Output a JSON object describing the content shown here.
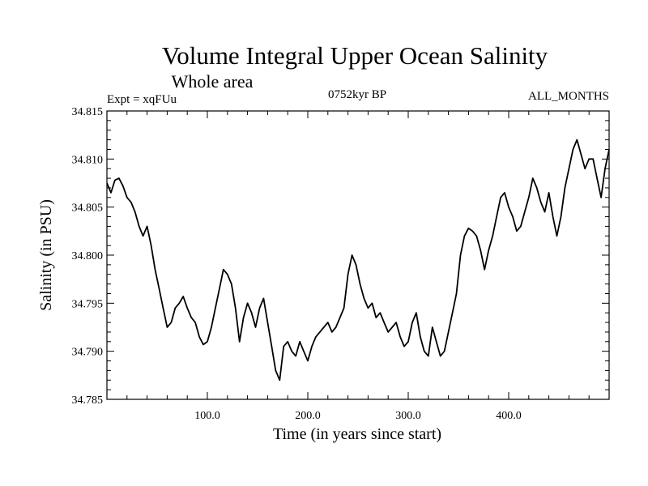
{
  "chart_data": {
    "type": "line",
    "title": "Volume Integral Upper Ocean Salinity",
    "subtitle": "Whole area",
    "experiment_label": "Expt = xqFUu",
    "period_label": "0752kyr BP",
    "months_label": "ALL_MONTHS",
    "xlabel": "Time (in years since start)",
    "ylabel": "Salinity (in PSU)",
    "xlim": [
      0,
      500
    ],
    "ylim": [
      34.785,
      34.815
    ],
    "x_ticks": [
      {
        "value": 100,
        "label": "100.0"
      },
      {
        "value": 200,
        "label": "200.0"
      },
      {
        "value": 300,
        "label": "300.0"
      },
      {
        "value": 400,
        "label": "400.0"
      }
    ],
    "y_ticks": [
      {
        "value": 34.785,
        "label": "34.785"
      },
      {
        "value": 34.79,
        "label": "34.790"
      },
      {
        "value": 34.795,
        "label": "34.795"
      },
      {
        "value": 34.8,
        "label": "34.800"
      },
      {
        "value": 34.805,
        "label": "34.805"
      },
      {
        "value": 34.81,
        "label": "34.810"
      },
      {
        "value": 34.815,
        "label": "34.815"
      }
    ],
    "series": [
      {
        "name": "salinity",
        "x": [
          0,
          4,
          8,
          12,
          16,
          20,
          24,
          28,
          32,
          36,
          40,
          44,
          48,
          52,
          56,
          60,
          64,
          68,
          72,
          76,
          80,
          84,
          88,
          92,
          96,
          100,
          104,
          108,
          112,
          116,
          120,
          124,
          128,
          132,
          136,
          140,
          144,
          148,
          152,
          156,
          160,
          164,
          168,
          172,
          176,
          180,
          184,
          188,
          192,
          196,
          200,
          204,
          208,
          212,
          216,
          220,
          224,
          228,
          232,
          236,
          240,
          244,
          248,
          252,
          256,
          260,
          264,
          268,
          272,
          276,
          280,
          284,
          288,
          292,
          296,
          300,
          304,
          308,
          312,
          316,
          320,
          324,
          328,
          332,
          336,
          340,
          344,
          348,
          352,
          356,
          360,
          364,
          368,
          372,
          376,
          380,
          384,
          388,
          392,
          396,
          400,
          404,
          408,
          412,
          416,
          420,
          424,
          428,
          432,
          436,
          440,
          444,
          448,
          452,
          456,
          460,
          464,
          468,
          472,
          476,
          480,
          484,
          488,
          492,
          496,
          500
        ],
        "values": [
          34.8075,
          34.8065,
          34.8078,
          34.808,
          34.8072,
          34.806,
          34.8055,
          34.8045,
          34.803,
          34.802,
          34.803,
          34.801,
          34.7985,
          34.7965,
          34.7945,
          34.7925,
          34.793,
          34.7945,
          34.795,
          34.7957,
          34.7945,
          34.7935,
          34.793,
          34.7915,
          34.7907,
          34.791,
          34.7925,
          34.7945,
          34.7965,
          34.7985,
          34.798,
          34.797,
          34.7945,
          34.791,
          34.7935,
          34.795,
          34.794,
          34.7925,
          34.7945,
          34.7955,
          34.793,
          34.7905,
          34.788,
          34.787,
          34.7905,
          34.791,
          34.79,
          34.7895,
          34.791,
          34.79,
          34.789,
          34.7905,
          34.7915,
          34.792,
          34.7925,
          34.793,
          34.792,
          34.7925,
          34.7935,
          34.7945,
          34.798,
          34.8,
          34.799,
          34.797,
          34.7955,
          34.7945,
          34.795,
          34.7935,
          34.794,
          34.793,
          34.792,
          34.7925,
          34.793,
          34.7915,
          34.7905,
          34.791,
          34.793,
          34.794,
          34.7915,
          34.79,
          34.7895,
          34.7925,
          34.791,
          34.7895,
          34.79,
          34.792,
          34.794,
          34.796,
          34.8,
          34.802,
          34.8028,
          34.8025,
          34.802,
          34.8005,
          34.7985,
          34.8005,
          34.802,
          34.804,
          34.806,
          34.8065,
          34.805,
          34.804,
          34.8025,
          34.803,
          34.8045,
          34.806,
          34.808,
          34.807,
          34.8055,
          34.8045,
          34.8065,
          34.804,
          34.802,
          34.804,
          34.807,
          34.809,
          34.811,
          34.812,
          34.8105,
          34.809,
          34.81,
          34.81,
          34.808,
          34.806,
          34.809,
          34.811
        ]
      }
    ]
  }
}
